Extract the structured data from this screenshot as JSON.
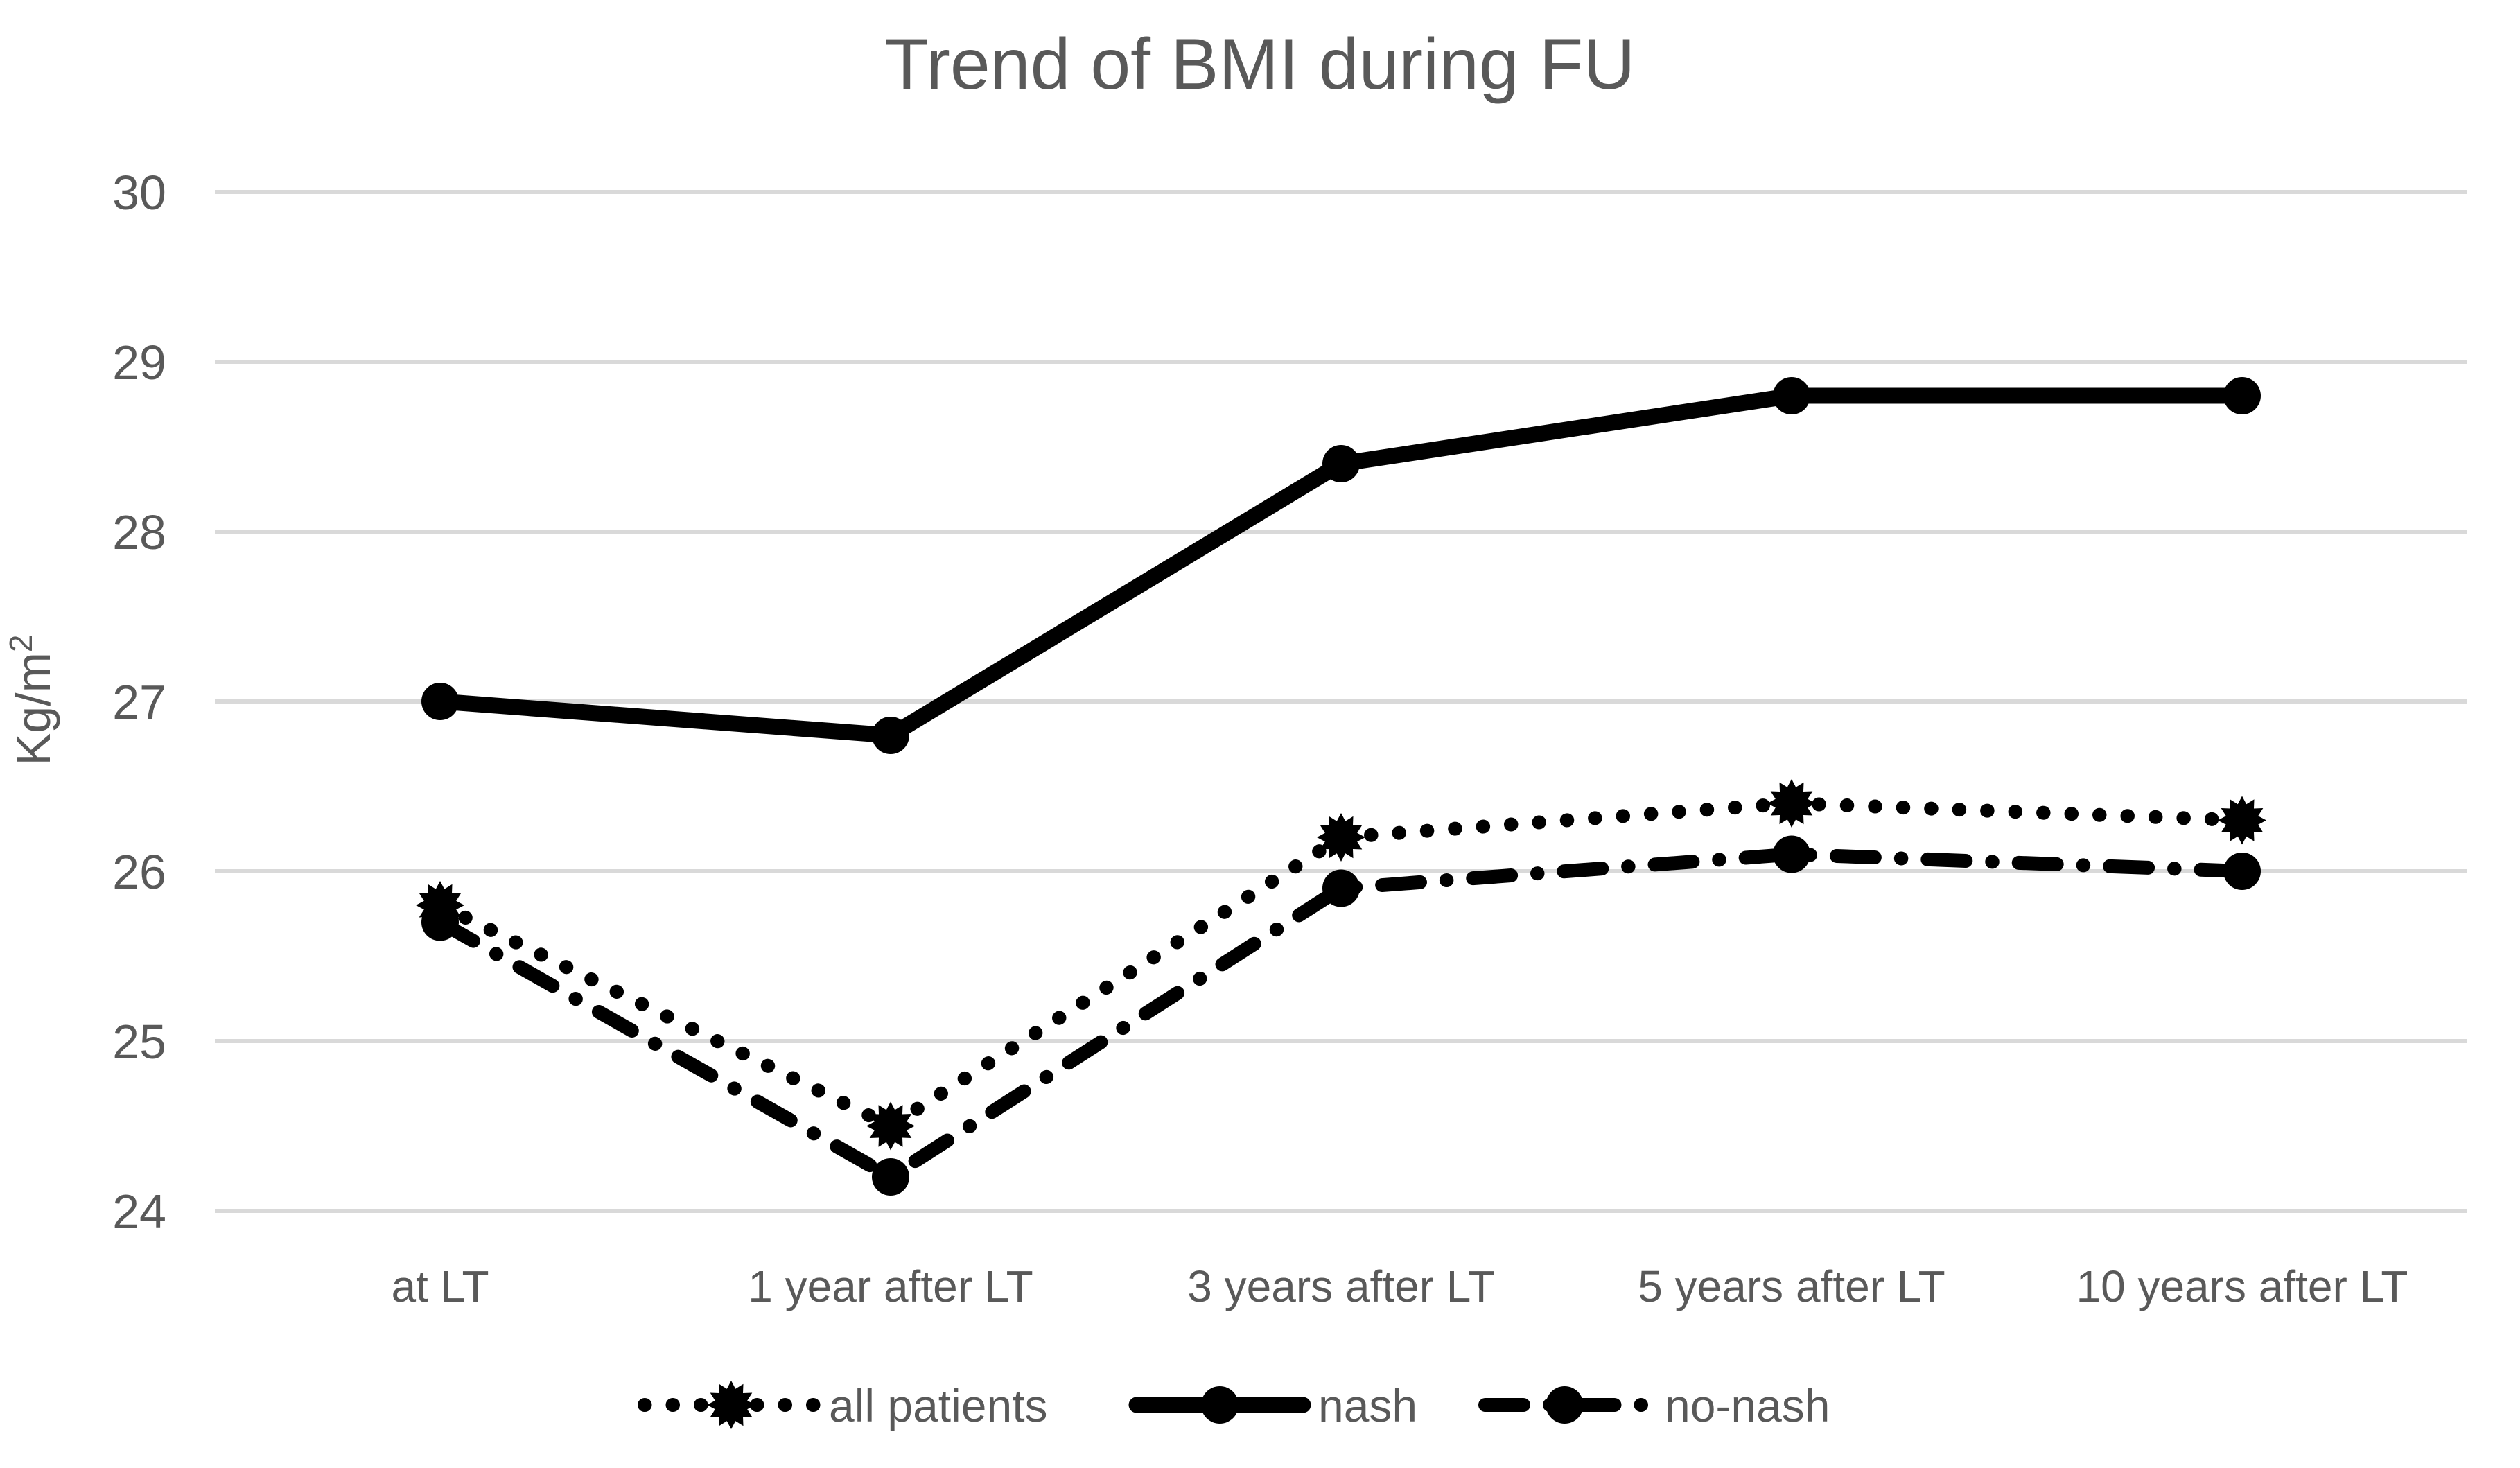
{
  "chart_data": {
    "type": "line",
    "title": "Trend of BMI during FU",
    "ylabel": "Kg/m²",
    "ylabel_base": "Kg/m",
    "ylabel_sup": "2",
    "xlabel": "",
    "categories": [
      "at LT",
      "1 year after LT",
      "3 years after LT",
      "5 years after LT",
      "10 years after LT"
    ],
    "series": [
      {
        "name": "all patients",
        "values": [
          25.8,
          24.5,
          26.2,
          26.4,
          26.3
        ],
        "line_style": "dotted",
        "marker": "star",
        "color": "#000000"
      },
      {
        "name": "nash",
        "values": [
          27.0,
          26.8,
          28.4,
          28.8,
          28.8
        ],
        "line_style": "solid",
        "marker": "circle",
        "color": "#000000"
      },
      {
        "name": "no-nash",
        "values": [
          25.7,
          24.2,
          25.9,
          26.1,
          26.0
        ],
        "line_style": "dash-dot",
        "marker": "circle",
        "color": "#000000"
      }
    ],
    "ylim": [
      24,
      30
    ],
    "yticks": [
      24,
      25,
      26,
      27,
      28,
      29,
      30
    ],
    "grid": true,
    "gridlines": "horizontal",
    "legend_position": "bottom",
    "colors": {
      "series": "#000000",
      "text": "#595959",
      "grid": "#d9d9d9",
      "background": "#ffffff"
    }
  }
}
